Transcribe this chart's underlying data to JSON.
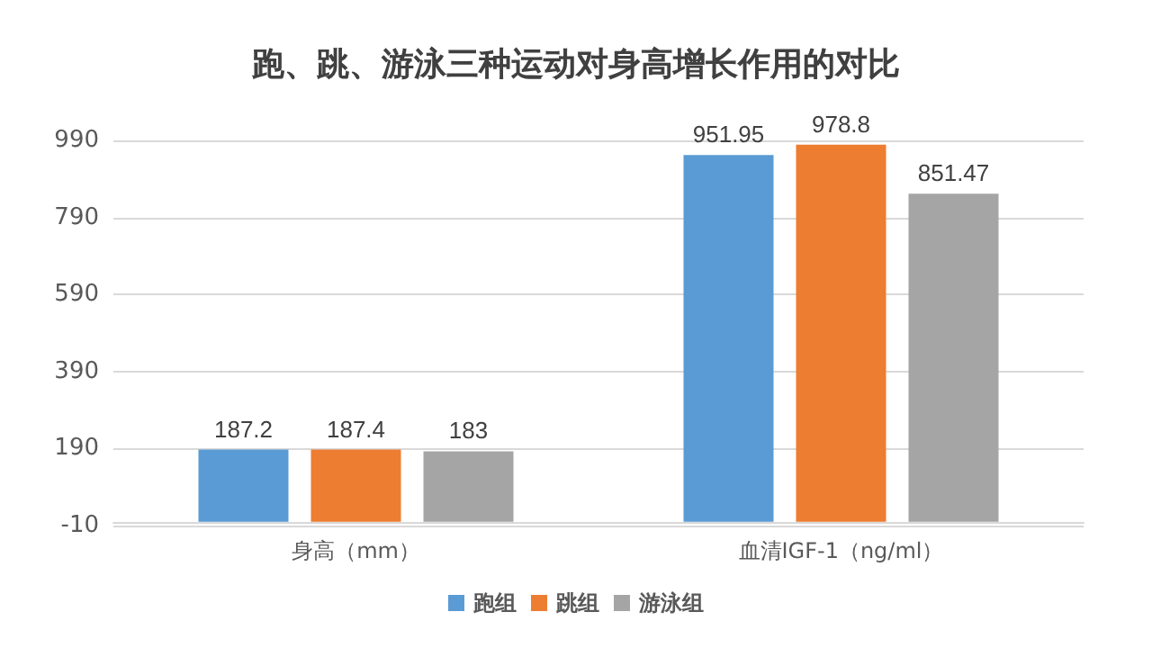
{
  "chart_data": {
    "type": "bar",
    "title": "跑、跳、游泳三种运动对身高增长作用的对比",
    "categories": [
      "身高（mm）",
      "血清IGF-1（ng/ml）"
    ],
    "series": [
      {
        "name": "跑组",
        "color": "#5b9bd5",
        "values": [
          187.2,
          951.95
        ]
      },
      {
        "name": "跳组",
        "color": "#ed7d31",
        "values": [
          187.4,
          978.8
        ]
      },
      {
        "name": "游泳组",
        "color": "#a5a5a5",
        "values": [
          183,
          851.47
        ]
      }
    ],
    "ylim": [
      -10,
      990
    ],
    "yticks": [
      -10,
      190,
      390,
      590,
      790,
      990
    ],
    "grid": "y",
    "legend": "bottom",
    "data_labels": true
  }
}
